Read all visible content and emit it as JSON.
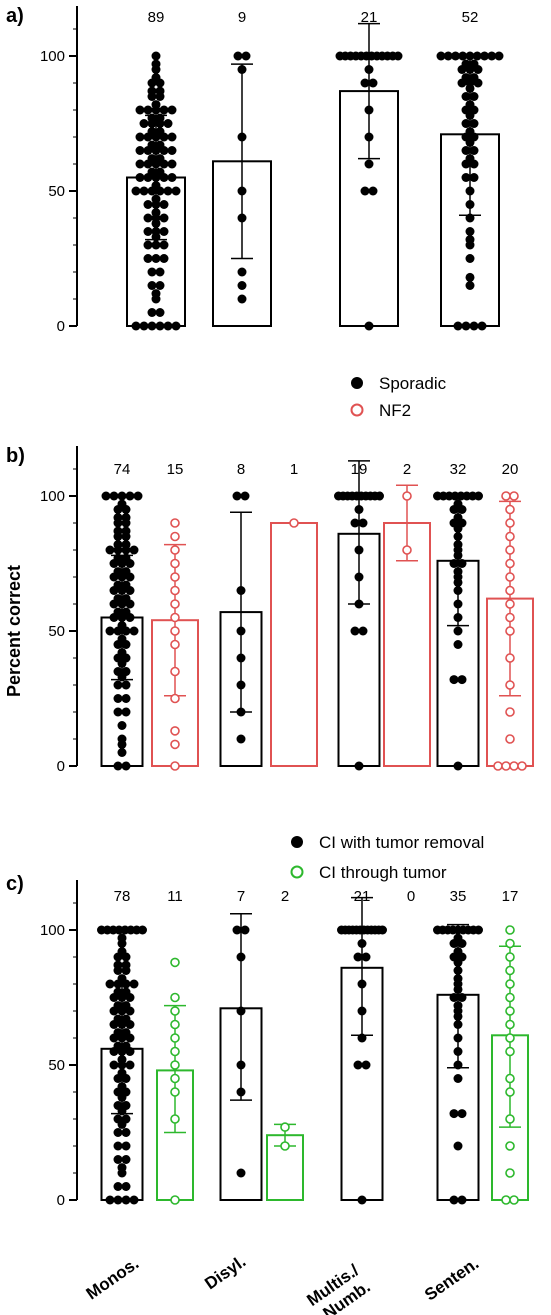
{
  "chart_data": [
    {
      "type": "bar",
      "panel": "a)",
      "categories": [
        "Monos.",
        "Disyl.",
        "Multis./ Numb.",
        "Senten."
      ],
      "series": [
        {
          "color": "#000000",
          "counts": [
            "89",
            "9",
            "21",
            "52"
          ],
          "means": [
            55,
            61,
            87,
            71
          ],
          "sd_low": [
            32,
            25,
            62,
            41
          ],
          "sd_high": [
            78,
            97,
            112,
            100
          ],
          "points": [
            [
              0,
              0,
              0,
              0,
              0,
              0,
              5,
              5,
              10,
              12,
              15,
              15,
              20,
              20,
              25,
              25,
              25,
              30,
              30,
              30,
              33,
              35,
              35,
              35,
              38,
              40,
              40,
              40,
              42,
              45,
              45,
              45,
              47,
              50,
              50,
              50,
              50,
              50,
              50,
              52,
              55,
              55,
              55,
              55,
              55,
              57,
              57,
              60,
              60,
              60,
              60,
              60,
              62,
              62,
              65,
              65,
              65,
              65,
              65,
              67,
              67,
              70,
              70,
              70,
              70,
              70,
              72,
              72,
              75,
              75,
              75,
              75,
              77,
              77,
              80,
              80,
              80,
              80,
              80,
              82,
              85,
              85,
              87,
              87,
              90,
              90,
              92,
              95,
              97,
              100
            ],
            [
              10,
              15,
              20,
              40,
              50,
              70,
              95,
              100,
              100
            ],
            [
              0,
              50,
              50,
              60,
              70,
              80,
              90,
              90,
              95,
              100,
              100,
              100,
              100,
              100,
              100,
              100,
              100,
              100,
              100,
              100,
              100
            ],
            [
              0,
              0,
              0,
              0,
              15,
              18,
              25,
              30,
              32,
              35,
              40,
              45,
              50,
              55,
              55,
              60,
              60,
              62,
              65,
              65,
              68,
              70,
              70,
              72,
              75,
              75,
              78,
              80,
              80,
              82,
              85,
              85,
              88,
              90,
              90,
              90,
              92,
              92,
              95,
              95,
              95,
              97,
              97,
              100,
              100,
              100,
              100,
              100,
              100,
              100,
              100,
              100
            ]
          ]
        }
      ],
      "ylim": [
        0,
        100
      ],
      "yticks": [
        "0",
        "50",
        "100"
      ]
    },
    {
      "type": "bar",
      "panel": "b)",
      "categories": [
        "Monos.",
        "Disyl.",
        "Multis./ Numb.",
        "Senten."
      ],
      "ylabel": "Percent correct",
      "series": [
        {
          "name": "Sporadic",
          "color": "#000000",
          "filled": true,
          "counts": [
            "74",
            "8",
            "19",
            "32"
          ],
          "means": [
            55,
            57,
            86,
            76
          ],
          "sd_low": [
            32,
            20,
            60,
            52
          ],
          "sd_high": [
            78,
            94,
            113,
            100
          ],
          "points": [
            [
              0,
              0,
              5,
              8,
              10,
              15,
              20,
              20,
              25,
              25,
              30,
              30,
              33,
              35,
              35,
              38,
              40,
              40,
              42,
              45,
              45,
              47,
              50,
              50,
              50,
              50,
              52,
              55,
              55,
              55,
              57,
              57,
              60,
              60,
              60,
              62,
              62,
              65,
              65,
              65,
              67,
              67,
              70,
              70,
              70,
              72,
              72,
              75,
              75,
              75,
              77,
              77,
              80,
              80,
              80,
              80,
              82,
              82,
              85,
              85,
              87,
              87,
              90,
              90,
              92,
              92,
              95,
              95,
              97,
              100,
              100,
              100,
              100,
              100
            ],
            [
              10,
              20,
              30,
              40,
              50,
              65,
              100,
              100
            ],
            [
              0,
              50,
              50,
              60,
              70,
              80,
              90,
              90,
              95,
              100,
              100,
              100,
              100,
              100,
              100,
              100,
              100,
              100,
              100
            ],
            [
              0,
              32,
              32,
              45,
              50,
              55,
              60,
              65,
              68,
              70,
              72,
              75,
              75,
              78,
              80,
              82,
              85,
              88,
              90,
              90,
              92,
              95,
              95,
              97,
              100,
              100,
              100,
              100,
              100,
              100,
              100,
              100
            ]
          ]
        },
        {
          "name": "NF2",
          "color": "#e05252",
          "filled": false,
          "counts": [
            "15",
            "1",
            "2",
            "20"
          ],
          "means": [
            54,
            90,
            90,
            62
          ],
          "sd_low": [
            26,
            90,
            76,
            26
          ],
          "sd_high": [
            82,
            90,
            104,
            98
          ],
          "points": [
            [
              0,
              8,
              13,
              25,
              35,
              45,
              50,
              55,
              60,
              65,
              70,
              75,
              80,
              85,
              90
            ],
            [
              90
            ],
            [
              80,
              100
            ],
            [
              0,
              0,
              0,
              0,
              10,
              20,
              30,
              40,
              50,
              55,
              60,
              65,
              70,
              75,
              80,
              85,
              90,
              95,
              100,
              100
            ]
          ]
        }
      ],
      "ylim": [
        0,
        100
      ],
      "yticks": [
        "0",
        "50",
        "100"
      ],
      "legend": {
        "placement": "top-right"
      }
    },
    {
      "type": "bar",
      "panel": "c)",
      "categories": [
        "Monos.",
        "Disyl.",
        "Multis./ Numb.",
        "Senten."
      ],
      "series": [
        {
          "name": "CI with tumor removal",
          "color": "#000000",
          "filled": true,
          "counts": [
            "78",
            "7",
            "21",
            "35"
          ],
          "means": [
            56,
            71,
            86,
            76
          ],
          "sd_low": [
            32,
            37,
            61,
            49
          ],
          "sd_high": [
            80,
            106,
            112,
            102
          ],
          "points": [
            [
              0,
              0,
              0,
              0,
              5,
              5,
              10,
              12,
              15,
              15,
              20,
              20,
              25,
              25,
              28,
              30,
              30,
              33,
              35,
              35,
              38,
              40,
              40,
              42,
              45,
              45,
              47,
              50,
              50,
              50,
              52,
              55,
              55,
              55,
              57,
              57,
              60,
              60,
              60,
              62,
              62,
              65,
              65,
              65,
              67,
              67,
              70,
              70,
              70,
              72,
              72,
              75,
              75,
              75,
              77,
              77,
              80,
              80,
              80,
              80,
              82,
              85,
              85,
              87,
              87,
              90,
              90,
              92,
              95,
              97,
              100,
              100,
              100,
              100,
              100,
              100,
              100,
              100
            ],
            [
              10,
              40,
              50,
              70,
              90,
              100,
              100
            ],
            [
              0,
              50,
              50,
              60,
              70,
              80,
              90,
              90,
              95,
              100,
              100,
              100,
              100,
              100,
              100,
              100,
              100,
              100,
              100,
              100,
              100
            ],
            [
              0,
              0,
              20,
              32,
              32,
              45,
              50,
              55,
              60,
              65,
              68,
              70,
              72,
              75,
              75,
              78,
              80,
              82,
              85,
              88,
              90,
              90,
              92,
              95,
              95,
              97,
              100,
              100,
              100,
              100,
              100,
              100,
              100,
              100,
              100
            ]
          ]
        },
        {
          "name": "CI through tumor",
          "color": "#2db82d",
          "filled": false,
          "counts": [
            "11",
            "2",
            "0",
            "17"
          ],
          "means": [
            48,
            24,
            null,
            61
          ],
          "sd_low": [
            25,
            20,
            null,
            27
          ],
          "sd_high": [
            72,
            28,
            null,
            94
          ],
          "points": [
            [
              0,
              30,
              40,
              45,
              50,
              55,
              60,
              65,
              70,
              75,
              88
            ],
            [
              20,
              27
            ],
            [],
            [
              0,
              0,
              10,
              20,
              30,
              40,
              45,
              55,
              60,
              65,
              70,
              75,
              80,
              85,
              90,
              95,
              100
            ]
          ]
        }
      ],
      "ylim": [
        0,
        100
      ],
      "yticks": [
        "0",
        "50",
        "100"
      ],
      "legend": {
        "placement": "top-right"
      }
    }
  ]
}
